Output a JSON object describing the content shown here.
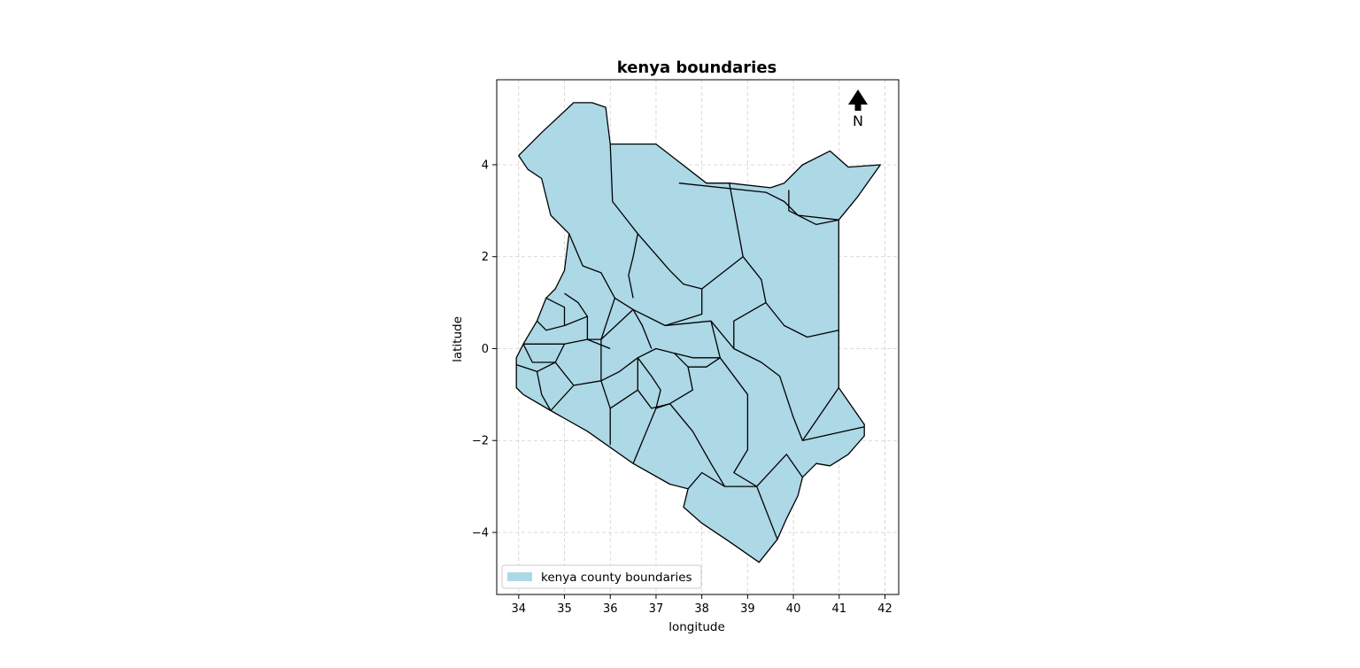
{
  "title": "kenya boundaries",
  "xlabel": "longitude",
  "ylabel": "latitude",
  "x_ticks": [
    "34",
    "35",
    "36",
    "37",
    "38",
    "39",
    "40",
    "41",
    "42"
  ],
  "x_tick_values": [
    34,
    35,
    36,
    37,
    38,
    39,
    40,
    41,
    42
  ],
  "y_ticks": [
    "−4",
    "−2",
    "0",
    "2",
    "4"
  ],
  "y_tick_values": [
    -4,
    -2,
    0,
    2,
    4
  ],
  "xlim": [
    33.52,
    42.3
  ],
  "ylim": [
    -5.35,
    5.85
  ],
  "grid": true,
  "legend": {
    "label": "kenya county boundaries",
    "placement": "lower-left"
  },
  "north_arrow": {
    "label": "N",
    "placement": "top-right"
  },
  "colors": {
    "fill": "#add8e6",
    "edge": "#000000"
  },
  "chart_data": {
    "type": "map",
    "title": "kenya boundaries",
    "xlabel": "longitude",
    "ylabel": "latitude",
    "xlim": [
      33.52,
      42.3
    ],
    "ylim": [
      -5.35,
      5.85
    ],
    "series": [
      {
        "name": "kenya county boundaries",
        "color": "#add8e6"
      }
    ],
    "outline": [
      [
        34.0,
        4.2
      ],
      [
        34.5,
        4.7
      ],
      [
        35.2,
        5.35
      ],
      [
        35.6,
        5.35
      ],
      [
        35.9,
        5.25
      ],
      [
        36.0,
        4.45
      ],
      [
        37.0,
        4.45
      ],
      [
        38.1,
        3.6
      ],
      [
        38.6,
        3.6
      ],
      [
        39.5,
        3.5
      ],
      [
        39.8,
        3.6
      ],
      [
        40.2,
        4.0
      ],
      [
        40.8,
        4.3
      ],
      [
        41.2,
        3.95
      ],
      [
        41.9,
        4.0
      ],
      [
        41.4,
        3.3
      ],
      [
        40.99,
        2.8
      ],
      [
        40.99,
        -0.85
      ],
      [
        41.55,
        -1.65
      ],
      [
        41.55,
        -1.9
      ],
      [
        41.2,
        -2.3
      ],
      [
        40.8,
        -2.55
      ],
      [
        40.5,
        -2.5
      ],
      [
        40.2,
        -2.8
      ],
      [
        40.1,
        -3.2
      ],
      [
        39.85,
        -3.7
      ],
      [
        39.65,
        -4.15
      ],
      [
        39.25,
        -4.65
      ],
      [
        38.6,
        -4.2
      ],
      [
        38.0,
        -3.8
      ],
      [
        37.6,
        -3.45
      ],
      [
        37.7,
        -3.05
      ],
      [
        37.3,
        -2.95
      ],
      [
        36.5,
        -2.5
      ],
      [
        35.5,
        -1.8
      ],
      [
        34.7,
        -1.35
      ],
      [
        34.1,
        -1.0
      ],
      [
        33.95,
        -0.85
      ],
      [
        33.95,
        -0.2
      ],
      [
        34.1,
        0.1
      ],
      [
        34.4,
        0.6
      ],
      [
        34.6,
        1.1
      ],
      [
        34.8,
        1.3
      ],
      [
        35.0,
        1.7
      ],
      [
        35.1,
        2.5
      ],
      [
        34.7,
        2.9
      ],
      [
        34.5,
        3.7
      ],
      [
        34.2,
        3.9
      ],
      [
        34.0,
        4.2
      ]
    ],
    "internal_boundaries": [
      [
        [
          36.0,
          4.45
        ],
        [
          36.05,
          3.2
        ],
        [
          36.6,
          2.5
        ],
        [
          36.5,
          2.0
        ],
        [
          36.4,
          1.6
        ],
        [
          36.5,
          1.1
        ]
      ],
      [
        [
          35.1,
          2.5
        ],
        [
          35.4,
          1.8
        ],
        [
          35.8,
          1.65
        ],
        [
          36.1,
          1.1
        ],
        [
          36.5,
          0.85
        ]
      ],
      [
        [
          37.5,
          3.6
        ],
        [
          39.4,
          3.4
        ],
        [
          39.8,
          3.2
        ],
        [
          40.1,
          2.9
        ],
        [
          40.99,
          2.8
        ]
      ],
      [
        [
          39.9,
          3.45
        ],
        [
          39.9,
          3.0
        ],
        [
          40.5,
          2.7
        ],
        [
          40.99,
          2.8
        ]
      ],
      [
        [
          38.6,
          3.6
        ],
        [
          38.9,
          2.0
        ],
        [
          39.3,
          1.5
        ],
        [
          39.4,
          1.0
        ],
        [
          39.8,
          0.5
        ],
        [
          40.3,
          0.25
        ],
        [
          40.99,
          0.4
        ]
      ],
      [
        [
          38.9,
          2.0
        ],
        [
          38.0,
          1.3
        ],
        [
          37.6,
          1.4
        ],
        [
          37.3,
          1.7
        ],
        [
          36.6,
          2.5
        ]
      ],
      [
        [
          38.0,
          1.3
        ],
        [
          38.0,
          0.75
        ],
        [
          37.2,
          0.5
        ],
        [
          36.5,
          0.85
        ],
        [
          35.8,
          0.2
        ]
      ],
      [
        [
          39.4,
          1.0
        ],
        [
          38.7,
          0.6
        ],
        [
          38.7,
          0.0
        ],
        [
          38.2,
          0.6
        ],
        [
          37.2,
          0.5
        ]
      ],
      [
        [
          38.7,
          0.0
        ],
        [
          39.3,
          -0.3
        ],
        [
          39.7,
          -0.6
        ],
        [
          40.0,
          -1.5
        ],
        [
          40.2,
          -2.0
        ],
        [
          40.99,
          -0.85
        ]
      ],
      [
        [
          38.4,
          -0.2
        ],
        [
          39.0,
          -1.0
        ],
        [
          39.0,
          -2.2
        ],
        [
          38.7,
          -2.7
        ],
        [
          39.2,
          -3.0
        ],
        [
          39.85,
          -2.3
        ],
        [
          40.2,
          -2.8
        ]
      ],
      [
        [
          40.2,
          -2.0
        ],
        [
          41.55,
          -1.7
        ]
      ],
      [
        [
          37.7,
          -3.05
        ],
        [
          38.0,
          -2.7
        ],
        [
          38.5,
          -3.0
        ],
        [
          39.2,
          -3.0
        ],
        [
          39.65,
          -4.15
        ]
      ],
      [
        [
          38.5,
          -3.0
        ],
        [
          38.2,
          -2.5
        ],
        [
          37.8,
          -1.8
        ],
        [
          37.3,
          -1.2
        ],
        [
          37.0,
          -1.3
        ],
        [
          36.5,
          -2.5
        ]
      ],
      [
        [
          36.0,
          -2.1
        ],
        [
          36.0,
          -1.3
        ],
        [
          35.8,
          -0.7
        ],
        [
          35.2,
          -0.8
        ],
        [
          34.7,
          -1.35
        ]
      ],
      [
        [
          36.0,
          -1.3
        ],
        [
          36.6,
          -0.9
        ],
        [
          36.9,
          -1.3
        ],
        [
          37.3,
          -1.2
        ]
      ],
      [
        [
          36.6,
          -0.9
        ],
        [
          36.6,
          -0.2
        ],
        [
          37.0,
          0.0
        ],
        [
          37.4,
          -0.1
        ],
        [
          37.7,
          -0.4
        ],
        [
          37.8,
          -0.9
        ],
        [
          37.3,
          -1.2
        ]
      ],
      [
        [
          37.4,
          -0.1
        ],
        [
          37.8,
          -0.2
        ],
        [
          38.4,
          -0.2
        ],
        [
          38.2,
          0.6
        ]
      ],
      [
        [
          37.7,
          -0.4
        ],
        [
          38.1,
          -0.4
        ],
        [
          38.4,
          -0.2
        ]
      ],
      [
        [
          36.6,
          -0.2
        ],
        [
          36.2,
          -0.5
        ],
        [
          35.8,
          -0.7
        ]
      ],
      [
        [
          36.0,
          0.0
        ],
        [
          35.5,
          0.2
        ],
        [
          35.0,
          0.1
        ],
        [
          34.5,
          0.1
        ],
        [
          34.1,
          0.1
        ]
      ],
      [
        [
          35.0,
          1.2
        ],
        [
          35.3,
          1.0
        ],
        [
          35.5,
          0.7
        ],
        [
          35.5,
          0.2
        ]
      ],
      [
        [
          34.6,
          1.1
        ],
        [
          35.0,
          0.9
        ],
        [
          35.0,
          0.5
        ],
        [
          34.6,
          0.4
        ],
        [
          34.4,
          0.6
        ]
      ],
      [
        [
          35.0,
          0.5
        ],
        [
          35.5,
          0.7
        ]
      ],
      [
        [
          35.0,
          0.1
        ],
        [
          34.8,
          -0.3
        ],
        [
          34.3,
          -0.3
        ],
        [
          34.1,
          0.1
        ]
      ],
      [
        [
          34.8,
          -0.3
        ],
        [
          35.2,
          -0.8
        ]
      ],
      [
        [
          33.95,
          -0.35
        ],
        [
          34.4,
          -0.5
        ],
        [
          34.8,
          -0.3
        ]
      ],
      [
        [
          34.4,
          -0.5
        ],
        [
          34.5,
          -1.0
        ],
        [
          34.7,
          -1.35
        ]
      ],
      [
        [
          35.5,
          0.2
        ],
        [
          35.8,
          0.2
        ],
        [
          35.8,
          -0.7
        ]
      ],
      [
        [
          36.1,
          1.1
        ],
        [
          35.8,
          0.2
        ]
      ],
      [
        [
          36.5,
          0.85
        ],
        [
          36.7,
          0.5
        ],
        [
          36.9,
          0.0
        ]
      ],
      [
        [
          36.6,
          -0.2
        ],
        [
          36.9,
          -0.6
        ],
        [
          37.1,
          -0.9
        ],
        [
          37.0,
          -1.3
        ]
      ]
    ]
  }
}
